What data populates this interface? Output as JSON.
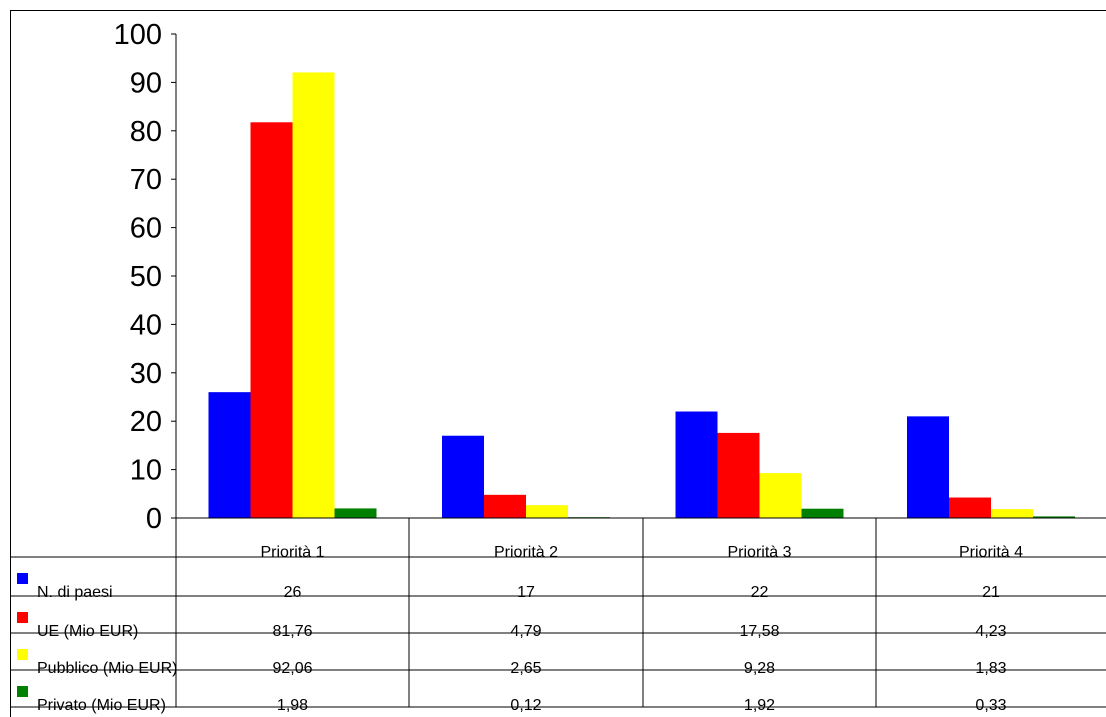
{
  "chart_data": {
    "type": "bar",
    "title": "",
    "xlabel": "",
    "ylabel": "",
    "ylim": [
      0,
      100
    ],
    "yticks": [
      0,
      10,
      20,
      30,
      40,
      50,
      60,
      70,
      80,
      90,
      100
    ],
    "categories": [
      "Priorità 1",
      "Priorità 2",
      "Priorità 3",
      "Priorità 4"
    ],
    "series": [
      {
        "name": "N. di paesi",
        "color": "#0000ff",
        "values": [
          26,
          17,
          22,
          21
        ],
        "labels": [
          "26",
          "17",
          "22",
          "21"
        ]
      },
      {
        "name": "UE (Mio EUR)",
        "color": "#ff0000",
        "values": [
          81.76,
          4.79,
          17.58,
          4.23
        ],
        "labels": [
          "81,76",
          "4,79",
          "17,58",
          "4,23"
        ]
      },
      {
        "name": "Pubblico (Mio EUR)",
        "color": "#ffff00",
        "values": [
          92.06,
          2.65,
          9.28,
          1.83
        ],
        "labels": [
          "92,06",
          "2,65",
          "9,28",
          "1,83"
        ]
      },
      {
        "name": "Privato (Mio EUR)",
        "color": "#008000",
        "values": [
          1.98,
          0.12,
          1.92,
          0.33
        ],
        "labels": [
          "1,98",
          "0,12",
          "1,92",
          "0,33"
        ]
      }
    ],
    "grid": false,
    "legend": "data table below chart"
  }
}
